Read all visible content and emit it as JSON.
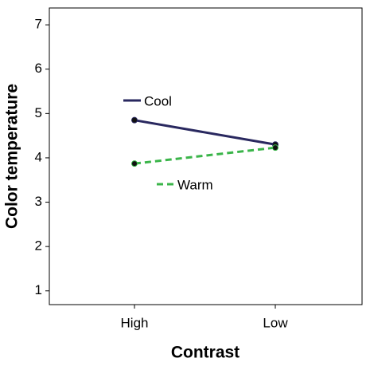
{
  "chart_data": {
    "type": "line",
    "x_label": "Contrast",
    "y_label": "Color temperature",
    "categories": [
      "High",
      "Low"
    ],
    "series": [
      {
        "name": "Cool",
        "color": "#29285f",
        "dash": false,
        "values": [
          4.85,
          4.3
        ]
      },
      {
        "name": "Warm",
        "color": "#3bb54a",
        "dash": true,
        "values": [
          3.87,
          4.23
        ]
      }
    ],
    "ylim": [
      0.69,
      7.38
    ],
    "yticks": [
      1,
      2,
      3,
      4,
      5,
      6,
      7
    ],
    "grid": false
  }
}
